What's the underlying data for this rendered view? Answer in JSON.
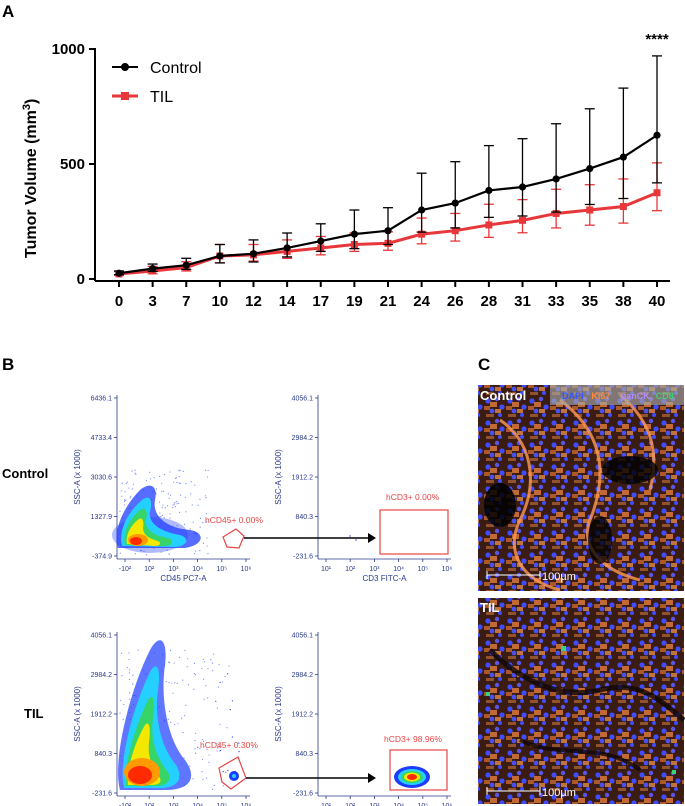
{
  "chart_data": {
    "type": "line",
    "panel_label": "A",
    "x": [
      0,
      3,
      7,
      10,
      12,
      14,
      17,
      19,
      21,
      24,
      26,
      28,
      31,
      33,
      35,
      38,
      40
    ],
    "ylabel_main": "Tumor Volume (mm",
    "ylabel_sup": "3",
    "ylabel_close": ")",
    "ylim": [
      0,
      1000
    ],
    "yticks": [
      "0",
      "500",
      "1000"
    ],
    "significance": "****",
    "series": [
      {
        "name": "Control",
        "color": "#000000",
        "values": [
          25,
          45,
          60,
          100,
          110,
          135,
          165,
          195,
          210,
          300,
          330,
          385,
          400,
          435,
          480,
          530,
          625
        ],
        "err_up": [
          10,
          20,
          30,
          50,
          60,
          65,
          75,
          105,
          100,
          160,
          180,
          195,
          210,
          240,
          260,
          300,
          345
        ]
      },
      {
        "name": "TIL",
        "color": "#e8373a",
        "values": [
          22,
          35,
          50,
          100,
          105,
          120,
          135,
          150,
          155,
          195,
          210,
          235,
          255,
          285,
          300,
          315,
          375
        ],
        "err_up": [
          10,
          20,
          25,
          50,
          45,
          50,
          50,
          50,
          50,
          70,
          75,
          90,
          90,
          105,
          110,
          120,
          130
        ]
      }
    ]
  },
  "panel_b": {
    "label": "B",
    "row_labels": [
      "Control",
      "TIL"
    ],
    "ssc_axis": "SSC-A (x 1000)",
    "cd45_axis": "CD45 PC7-A",
    "cd3_axis": "CD3 FITC-A",
    "cd45_xticks": [
      "-10²",
      "10²",
      "10³",
      "10⁴",
      "10⁵",
      "10⁶"
    ],
    "cd3_xticks": [
      "10¹",
      "10²",
      "10³",
      "10⁴",
      "10⁵",
      "10⁶"
    ],
    "top_left_yticks": [
      "6436.1",
      "4733.4",
      "3030.6",
      "1327.9",
      "-374.9"
    ],
    "top_right_yticks": [
      "4056.1",
      "2984.2",
      "1912.2",
      "840.3",
      "-231.6"
    ],
    "bottom_left_yticks": [
      "4056.1",
      "2984.2",
      "1912.2",
      "840.3",
      "-231.6"
    ],
    "bottom_right_yticks": [
      "4056.1",
      "2984.2",
      "1912.2",
      "840.3",
      "-231.6"
    ],
    "gates": {
      "control_cd45": "hCD45+ 0.00%",
      "control_cd3": "hCD3+ 0.00%",
      "til_cd45": "hCD45+ 0.30%",
      "til_cd3": "hCD3+ 98.96%"
    }
  },
  "panel_c": {
    "label": "C",
    "control_title": "Control",
    "til_title": "TIL",
    "legend_items": [
      {
        "text": "DAPI",
        "color": "#3355ff"
      },
      {
        "text": "Ki67",
        "color": "#ff8a3c"
      },
      {
        "text": "panCK",
        "color": "#b08cff"
      },
      {
        "text": "CD8",
        "color": "#3cd27a"
      }
    ],
    "scale_bar": "100µm"
  }
}
